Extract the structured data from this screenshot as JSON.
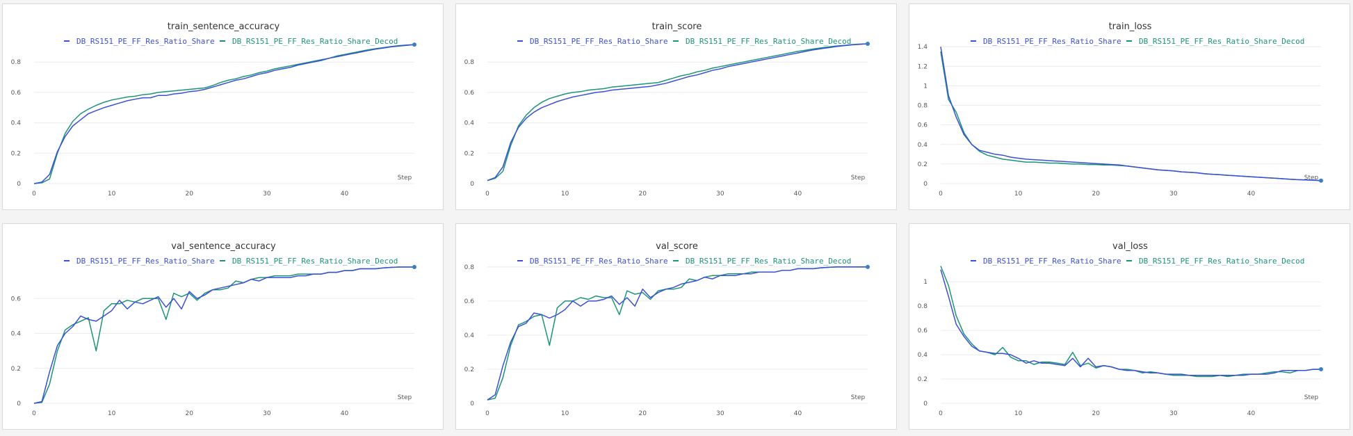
{
  "legend_names": [
    "DB_RS151_PE_FF_Res_Ratio_Share",
    "DB_RS151_PE_FF_Res_Ratio_Share_Decod"
  ],
  "colors": {
    "series1": "#3a4fd8",
    "series2": "#1a9477",
    "marker": "#3b7ec6"
  },
  "step_label": "Step",
  "chart_data": [
    {
      "type": "line",
      "title": "train_sentence_accuracy",
      "xlim": [
        0,
        49
      ],
      "ylim": [
        0,
        0.92
      ],
      "xticks": [
        0,
        10,
        20,
        30,
        40
      ],
      "yticks": [
        0,
        0.2,
        0.4,
        0.6,
        0.8
      ],
      "ytick_labels": [
        "0",
        "0.2",
        "0.4",
        "0.6",
        "0.8"
      ],
      "x": [
        0,
        1,
        2,
        3,
        4,
        5,
        6,
        7,
        8,
        9,
        10,
        11,
        12,
        13,
        14,
        15,
        16,
        17,
        18,
        19,
        20,
        21,
        22,
        23,
        24,
        25,
        26,
        27,
        28,
        29,
        30,
        31,
        32,
        33,
        34,
        35,
        36,
        37,
        38,
        39,
        40,
        41,
        42,
        43,
        44,
        45,
        46,
        47,
        48,
        49
      ],
      "series": [
        {
          "name": "DB_RS151_PE_FF_Res_Ratio_Share",
          "values": [
            0,
            0.01,
            0.06,
            0.21,
            0.31,
            0.38,
            0.42,
            0.46,
            0.48,
            0.5,
            0.515,
            0.53,
            0.545,
            0.555,
            0.565,
            0.565,
            0.58,
            0.58,
            0.59,
            0.595,
            0.605,
            0.61,
            0.62,
            0.635,
            0.65,
            0.665,
            0.68,
            0.69,
            0.705,
            0.72,
            0.73,
            0.745,
            0.755,
            0.765,
            0.78,
            0.79,
            0.8,
            0.81,
            0.825,
            0.835,
            0.845,
            0.855,
            0.865,
            0.875,
            0.885,
            0.892,
            0.9,
            0.905,
            0.91,
            0.915
          ]
        },
        {
          "name": "DB_RS151_PE_FF_Res_Ratio_Share_Decod",
          "values": [
            0,
            0.005,
            0.03,
            0.2,
            0.33,
            0.41,
            0.46,
            0.49,
            0.515,
            0.535,
            0.55,
            0.56,
            0.57,
            0.575,
            0.585,
            0.59,
            0.6,
            0.605,
            0.61,
            0.615,
            0.62,
            0.625,
            0.63,
            0.645,
            0.665,
            0.68,
            0.69,
            0.705,
            0.715,
            0.73,
            0.74,
            0.755,
            0.765,
            0.775,
            0.785,
            0.795,
            0.805,
            0.815,
            0.825,
            0.84,
            0.85,
            0.86,
            0.87,
            0.88,
            0.888,
            0.895,
            0.902,
            0.908,
            0.912,
            0.915
          ]
        }
      ]
    },
    {
      "type": "line",
      "title": "train_score",
      "xlim": [
        0,
        49
      ],
      "ylim": [
        0,
        0.92
      ],
      "xticks": [
        0,
        10,
        20,
        30,
        40
      ],
      "yticks": [
        0,
        0.2,
        0.4,
        0.6,
        0.8
      ],
      "ytick_labels": [
        "0",
        "0.2",
        "0.4",
        "0.6",
        "0.8"
      ],
      "x": [
        0,
        1,
        2,
        3,
        4,
        5,
        6,
        7,
        8,
        9,
        10,
        11,
        12,
        13,
        14,
        15,
        16,
        17,
        18,
        19,
        20,
        21,
        22,
        23,
        24,
        25,
        26,
        27,
        28,
        29,
        30,
        31,
        32,
        33,
        34,
        35,
        36,
        37,
        38,
        39,
        40,
        41,
        42,
        43,
        44,
        45,
        46,
        47,
        48,
        49
      ],
      "series": [
        {
          "name": "DB_RS151_PE_FF_Res_Ratio_Share",
          "values": [
            0.02,
            0.04,
            0.11,
            0.27,
            0.37,
            0.43,
            0.47,
            0.5,
            0.52,
            0.54,
            0.555,
            0.57,
            0.58,
            0.59,
            0.6,
            0.605,
            0.615,
            0.62,
            0.625,
            0.63,
            0.635,
            0.64,
            0.65,
            0.66,
            0.675,
            0.69,
            0.705,
            0.715,
            0.73,
            0.745,
            0.755,
            0.77,
            0.78,
            0.79,
            0.8,
            0.81,
            0.82,
            0.83,
            0.84,
            0.85,
            0.86,
            0.87,
            0.88,
            0.888,
            0.895,
            0.902,
            0.908,
            0.913,
            0.917,
            0.92
          ]
        },
        {
          "name": "DB_RS151_PE_FF_Res_Ratio_Share_Decod",
          "values": [
            0.02,
            0.035,
            0.08,
            0.25,
            0.38,
            0.45,
            0.5,
            0.535,
            0.56,
            0.575,
            0.59,
            0.6,
            0.605,
            0.615,
            0.62,
            0.625,
            0.635,
            0.64,
            0.645,
            0.65,
            0.655,
            0.66,
            0.665,
            0.68,
            0.695,
            0.71,
            0.72,
            0.735,
            0.745,
            0.76,
            0.77,
            0.78,
            0.79,
            0.8,
            0.81,
            0.82,
            0.83,
            0.84,
            0.85,
            0.86,
            0.87,
            0.878,
            0.886,
            0.893,
            0.9,
            0.906,
            0.91,
            0.915,
            0.918,
            0.92
          ]
        }
      ]
    },
    {
      "type": "line",
      "title": "train_loss",
      "xlim": [
        0,
        49
      ],
      "ylim": [
        0,
        1.43
      ],
      "xticks": [
        0,
        10,
        20,
        30,
        40
      ],
      "yticks": [
        0,
        0.2,
        0.4,
        0.6,
        0.8,
        1,
        1.2,
        1.4
      ],
      "ytick_labels": [
        "0",
        "0.2",
        "0.4",
        "0.6",
        "0.8",
        "1",
        "1.2",
        "1.4"
      ],
      "x": [
        0,
        1,
        2,
        3,
        4,
        5,
        6,
        7,
        8,
        9,
        10,
        11,
        12,
        13,
        14,
        15,
        16,
        17,
        18,
        19,
        20,
        21,
        22,
        23,
        24,
        25,
        26,
        27,
        28,
        29,
        30,
        31,
        32,
        33,
        34,
        35,
        36,
        37,
        38,
        39,
        40,
        41,
        42,
        43,
        44,
        45,
        46,
        47,
        48,
        49
      ],
      "series": [
        {
          "name": "DB_RS151_PE_FF_Res_Ratio_Share",
          "values": [
            1.4,
            0.9,
            0.68,
            0.5,
            0.4,
            0.34,
            0.32,
            0.3,
            0.29,
            0.27,
            0.26,
            0.25,
            0.245,
            0.24,
            0.235,
            0.23,
            0.225,
            0.22,
            0.215,
            0.21,
            0.205,
            0.2,
            0.195,
            0.19,
            0.18,
            0.17,
            0.16,
            0.15,
            0.14,
            0.135,
            0.13,
            0.12,
            0.115,
            0.11,
            0.1,
            0.095,
            0.09,
            0.085,
            0.08,
            0.075,
            0.07,
            0.065,
            0.06,
            0.055,
            0.05,
            0.045,
            0.04,
            0.038,
            0.035,
            0.03
          ]
        },
        {
          "name": "DB_RS151_PE_FF_Res_Ratio_Share_Decod",
          "values": [
            1.35,
            0.86,
            0.73,
            0.52,
            0.4,
            0.33,
            0.29,
            0.27,
            0.25,
            0.24,
            0.23,
            0.22,
            0.22,
            0.215,
            0.21,
            0.21,
            0.205,
            0.2,
            0.2,
            0.195,
            0.195,
            0.19,
            0.19,
            0.185,
            0.18,
            0.17,
            0.16,
            0.15,
            0.14,
            0.135,
            0.13,
            0.12,
            0.115,
            0.11,
            0.1,
            0.095,
            0.09,
            0.085,
            0.08,
            0.075,
            0.07,
            0.065,
            0.06,
            0.055,
            0.05,
            0.045,
            0.04,
            0.037,
            0.034,
            0.03
          ]
        }
      ]
    },
    {
      "type": "line",
      "title": "val_sentence_accuracy",
      "xlim": [
        0,
        49
      ],
      "ylim": [
        0,
        0.8
      ],
      "xticks": [
        0,
        10,
        20,
        30,
        40
      ],
      "yticks": [
        0,
        0.2,
        0.4,
        0.6
      ],
      "ytick_labels": [
        "0",
        "0.2",
        "0.4",
        "0.6"
      ],
      "x": [
        0,
        1,
        2,
        3,
        4,
        5,
        6,
        7,
        8,
        9,
        10,
        11,
        12,
        13,
        14,
        15,
        16,
        17,
        18,
        19,
        20,
        21,
        22,
        23,
        24,
        25,
        26,
        27,
        28,
        29,
        30,
        31,
        32,
        33,
        34,
        35,
        36,
        37,
        38,
        39,
        40,
        41,
        42,
        43,
        44,
        45,
        46,
        47,
        48,
        49
      ],
      "series": [
        {
          "name": "DB_RS151_PE_FF_Res_Ratio_Share",
          "values": [
            0,
            0.01,
            0.18,
            0.33,
            0.4,
            0.44,
            0.5,
            0.48,
            0.47,
            0.5,
            0.53,
            0.59,
            0.54,
            0.58,
            0.57,
            0.59,
            0.61,
            0.55,
            0.6,
            0.54,
            0.64,
            0.6,
            0.62,
            0.65,
            0.66,
            0.67,
            0.68,
            0.69,
            0.71,
            0.7,
            0.72,
            0.72,
            0.72,
            0.72,
            0.73,
            0.73,
            0.74,
            0.74,
            0.75,
            0.75,
            0.76,
            0.76,
            0.77,
            0.77,
            0.77,
            0.775,
            0.778,
            0.78,
            0.78,
            0.78
          ]
        },
        {
          "name": "DB_RS151_PE_FF_Res_Ratio_Share_Decod",
          "values": [
            0,
            0.005,
            0.11,
            0.3,
            0.42,
            0.45,
            0.47,
            0.49,
            0.3,
            0.53,
            0.57,
            0.57,
            0.59,
            0.58,
            0.6,
            0.6,
            0.6,
            0.48,
            0.63,
            0.61,
            0.63,
            0.59,
            0.63,
            0.65,
            0.65,
            0.66,
            0.7,
            0.69,
            0.71,
            0.72,
            0.72,
            0.73,
            0.73,
            0.73,
            0.74,
            0.74,
            0.74,
            0.74,
            0.75,
            0.75,
            0.76,
            0.76,
            0.77,
            0.77,
            0.77,
            0.775,
            0.778,
            0.78,
            0.78,
            0.78
          ]
        }
      ]
    },
    {
      "type": "line",
      "title": "val_score",
      "xlim": [
        0,
        49
      ],
      "ylim": [
        0,
        0.82
      ],
      "xticks": [
        0,
        10,
        20,
        30,
        40
      ],
      "yticks": [
        0,
        0.2,
        0.4,
        0.6,
        0.8
      ],
      "ytick_labels": [
        "0",
        "0.2",
        "0.4",
        "0.6",
        "0.8"
      ],
      "x": [
        0,
        1,
        2,
        3,
        4,
        5,
        6,
        7,
        8,
        9,
        10,
        11,
        12,
        13,
        14,
        15,
        16,
        17,
        18,
        19,
        20,
        21,
        22,
        23,
        24,
        25,
        26,
        27,
        28,
        29,
        30,
        31,
        32,
        33,
        34,
        35,
        36,
        37,
        38,
        39,
        40,
        41,
        42,
        43,
        44,
        45,
        46,
        47,
        48,
        49
      ],
      "series": [
        {
          "name": "DB_RS151_PE_FF_Res_Ratio_Share",
          "values": [
            0.02,
            0.05,
            0.22,
            0.36,
            0.45,
            0.47,
            0.53,
            0.52,
            0.5,
            0.52,
            0.55,
            0.6,
            0.57,
            0.6,
            0.6,
            0.61,
            0.63,
            0.58,
            0.62,
            0.57,
            0.67,
            0.62,
            0.65,
            0.67,
            0.68,
            0.7,
            0.71,
            0.72,
            0.74,
            0.73,
            0.75,
            0.75,
            0.75,
            0.76,
            0.76,
            0.77,
            0.77,
            0.77,
            0.78,
            0.78,
            0.79,
            0.79,
            0.79,
            0.795,
            0.798,
            0.8,
            0.8,
            0.8,
            0.8,
            0.8
          ]
        },
        {
          "name": "DB_RS151_PE_FF_Res_Ratio_Share_Decod",
          "values": [
            0.02,
            0.03,
            0.15,
            0.34,
            0.46,
            0.48,
            0.51,
            0.52,
            0.34,
            0.56,
            0.6,
            0.6,
            0.62,
            0.61,
            0.63,
            0.62,
            0.62,
            0.52,
            0.66,
            0.64,
            0.65,
            0.61,
            0.66,
            0.67,
            0.67,
            0.68,
            0.73,
            0.72,
            0.74,
            0.75,
            0.75,
            0.76,
            0.76,
            0.76,
            0.77,
            0.77,
            0.77,
            0.77,
            0.78,
            0.78,
            0.79,
            0.79,
            0.79,
            0.795,
            0.798,
            0.8,
            0.8,
            0.8,
            0.8,
            0.8
          ]
        }
      ]
    },
    {
      "type": "line",
      "title": "val_loss",
      "xlim": [
        0,
        49
      ],
      "ylim": [
        0,
        1.15
      ],
      "xticks": [
        0,
        10,
        20,
        30,
        40
      ],
      "yticks": [
        0,
        0.2,
        0.4,
        0.6,
        0.8,
        1
      ],
      "ytick_labels": [
        "0",
        "0.2",
        "0.4",
        "0.6",
        "0.8",
        "1"
      ],
      "x": [
        0,
        1,
        2,
        3,
        4,
        5,
        6,
        7,
        8,
        9,
        10,
        11,
        12,
        13,
        14,
        15,
        16,
        17,
        18,
        19,
        20,
        21,
        22,
        23,
        24,
        25,
        26,
        27,
        28,
        29,
        30,
        31,
        32,
        33,
        34,
        35,
        36,
        37,
        38,
        39,
        40,
        41,
        42,
        43,
        44,
        45,
        46,
        47,
        48,
        49
      ],
      "series": [
        {
          "name": "DB_RS151_PE_FF_Res_Ratio_Share",
          "values": [
            1.1,
            0.88,
            0.65,
            0.55,
            0.47,
            0.43,
            0.42,
            0.41,
            0.41,
            0.4,
            0.37,
            0.33,
            0.35,
            0.33,
            0.33,
            0.32,
            0.31,
            0.37,
            0.3,
            0.37,
            0.3,
            0.31,
            0.3,
            0.28,
            0.27,
            0.27,
            0.26,
            0.25,
            0.25,
            0.24,
            0.24,
            0.24,
            0.23,
            0.23,
            0.23,
            0.23,
            0.23,
            0.23,
            0.23,
            0.23,
            0.24,
            0.24,
            0.24,
            0.25,
            0.27,
            0.27,
            0.27,
            0.27,
            0.28,
            0.28
          ]
        },
        {
          "name": "DB_RS151_PE_FF_Res_Ratio_Share_Decod",
          "values": [
            1.13,
            0.97,
            0.72,
            0.57,
            0.49,
            0.43,
            0.42,
            0.4,
            0.46,
            0.38,
            0.35,
            0.35,
            0.32,
            0.34,
            0.34,
            0.33,
            0.32,
            0.42,
            0.31,
            0.33,
            0.29,
            0.31,
            0.3,
            0.28,
            0.28,
            0.27,
            0.25,
            0.26,
            0.25,
            0.24,
            0.23,
            0.23,
            0.23,
            0.22,
            0.22,
            0.22,
            0.23,
            0.22,
            0.23,
            0.24,
            0.24,
            0.24,
            0.25,
            0.26,
            0.26,
            0.25,
            0.27,
            0.27,
            0.28,
            0.28
          ]
        }
      ]
    }
  ]
}
